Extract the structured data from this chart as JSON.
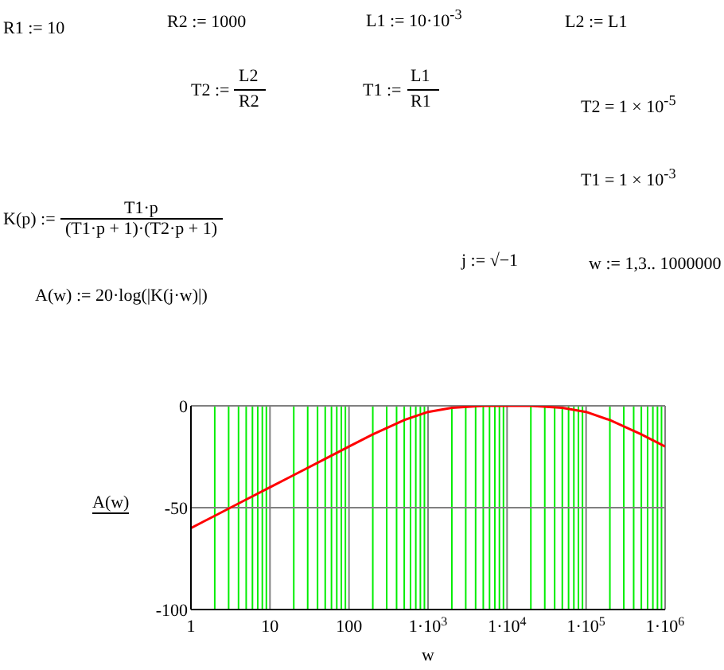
{
  "chart_data": {
    "type": "line",
    "annotations": [
      "R1 := 10",
      "R2 := 1000",
      "L1 := 10·10$^{-3}$",
      "L2 := L1",
      "T2 :=",
      "L2",
      "R2",
      "T1 :=",
      "L1",
      "R1",
      "T2 = 1 × 10$^{-5}$",
      "T1 = 1 × 10$^{-3}$",
      "K(p) :=",
      "T1·p",
      "(T1·p + 1)·(T2·p + 1)",
      "j := √−1",
      "w := 1,3.. 1000000",
      "A(w) := 20·log(|K(j·w)|)"
    ],
    "xlabel": "w",
    "ylabel": "A(w)",
    "x": [
      1,
      2,
      5,
      10,
      20,
      50,
      100,
      200,
      500,
      1000,
      2000,
      5000,
      10000,
      20000,
      50000,
      100000,
      200000,
      500000,
      1000000
    ],
    "series": [
      {
        "color": "#ff0000",
        "values": [
          -60,
          -54,
          -46,
          -40,
          -34,
          -26,
          -20,
          -14,
          -7,
          -3,
          -1,
          0,
          0,
          0,
          -1,
          -3,
          -7,
          -14,
          -20
        ]
      }
    ],
    "log": "x",
    "grid": true,
    "marker": "none",
    "line_style": "solid",
    "xlim": [
      1,
      1000000
    ],
    "xticks": [
      1,
      {
        "value": 2,
        "label": null
      },
      {
        "value": 3,
        "label": null
      },
      {
        "value": 4,
        "label": null
      },
      {
        "value": 5,
        "label": null
      },
      {
        "value": 6,
        "label": null
      },
      {
        "value": 7,
        "label": null
      },
      {
        "value": 8,
        "label": null
      },
      {
        "value": 9,
        "label": null
      },
      10,
      {
        "value": 20,
        "label": null
      },
      {
        "value": 30,
        "label": null
      },
      {
        "value": 40,
        "label": null
      },
      {
        "value": 50,
        "label": null
      },
      {
        "value": 60,
        "label": null
      },
      {
        "value": 70,
        "label": null
      },
      {
        "value": 80,
        "label": null
      },
      {
        "value": 90,
        "label": null
      },
      100,
      {
        "value": 200,
        "label": null
      },
      {
        "value": 300,
        "label": null
      },
      {
        "value": 400,
        "label": null
      },
      {
        "value": 500,
        "label": null
      },
      {
        "value": 600,
        "label": null
      },
      {
        "value": 700,
        "label": null
      },
      {
        "value": 800,
        "label": null
      },
      {
        "value": 900,
        "label": null
      },
      {
        "value": 1000,
        "label": "1·10$^{3}$"
      },
      {
        "value": 2000,
        "label": null
      },
      {
        "value": 3000,
        "label": null
      },
      {
        "value": 4000,
        "label": null
      },
      {
        "value": 5000,
        "label": null
      },
      {
        "value": 6000,
        "label": null
      },
      {
        "value": 7000,
        "label": null
      },
      {
        "value": 8000,
        "label": null
      },
      {
        "value": 9000,
        "label": null
      },
      {
        "value": 10000,
        "label": "1·10$^{4}$"
      },
      {
        "value": 20000,
        "label": null
      },
      {
        "value": 30000,
        "label": null
      },
      {
        "value": 40000,
        "label": null
      },
      {
        "value": 50000,
        "label": null
      },
      {
        "value": 60000,
        "label": null
      },
      {
        "value": 70000,
        "label": null
      },
      {
        "value": 80000,
        "label": null
      },
      {
        "value": 90000,
        "label": null
      },
      {
        "value": 100000,
        "label": "1·10$^{5}$"
      },
      {
        "value": 200000,
        "label": null
      },
      {
        "value": 300000,
        "label": null
      },
      {
        "value": 400000,
        "label": null
      },
      {
        "value": 500000,
        "label": null
      },
      {
        "value": 600000,
        "label": null
      },
      {
        "value": 700000,
        "label": null
      },
      {
        "value": 800000,
        "label": null
      },
      {
        "value": 900000,
        "label": null
      },
      {
        "value": 1000000,
        "label": "1·10$^{6}$"
      }
    ],
    "ylim": [
      -100,
      0
    ],
    "yticks": [
      0,
      -50,
      -100
    ]
  }
}
